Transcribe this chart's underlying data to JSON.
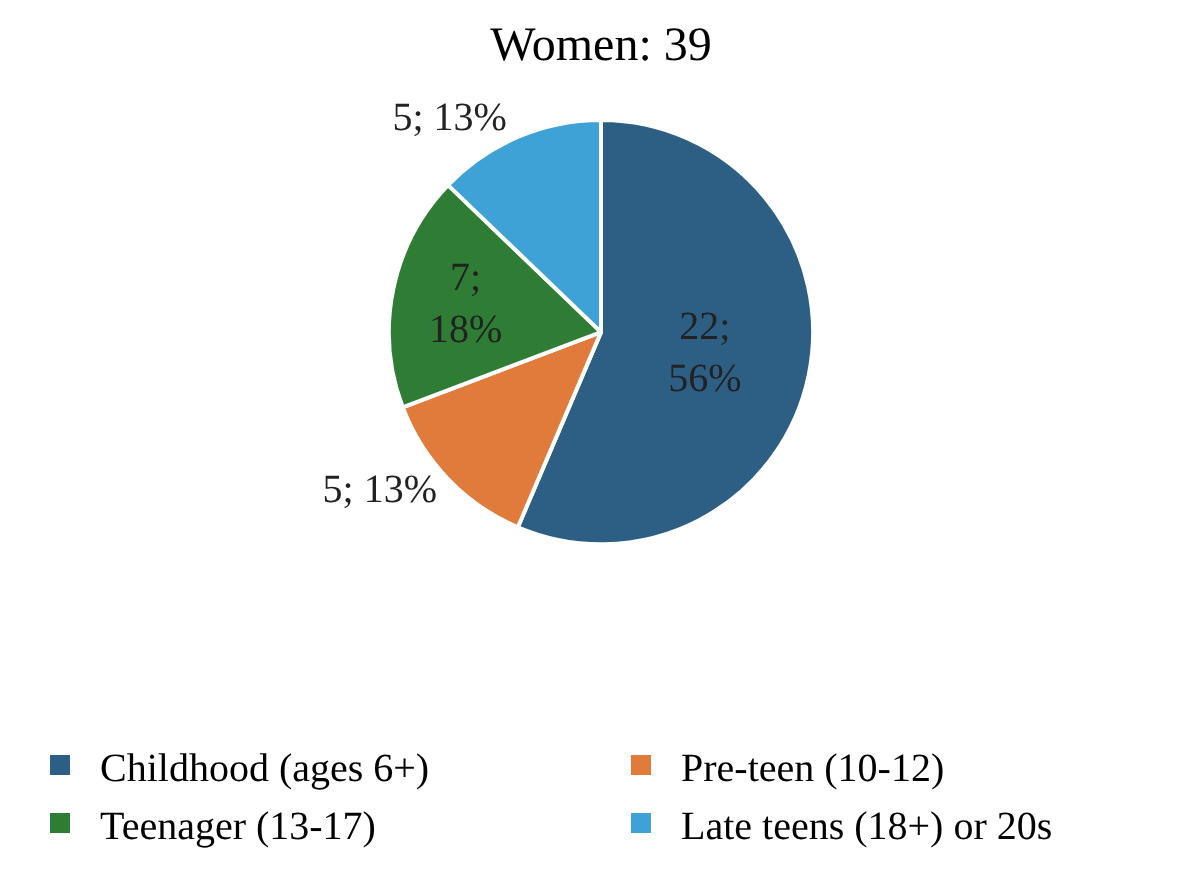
{
  "chart_data": {
    "type": "pie",
    "title": "Women: 39",
    "categories": [
      "Childhood (ages 6+)",
      "Pre-teen (10-12)",
      "Teenager (13-17)",
      "Late teens (18+) or 20s"
    ],
    "values": [
      22,
      5,
      7,
      5
    ],
    "value_labels": [
      "22; 56%",
      "5; 13%",
      "7; 18%",
      "5; 13%"
    ],
    "colors": [
      "#2d5f85",
      "#e07b3c",
      "#2f7d35",
      "#3ea2d6"
    ],
    "legend": "bottom"
  }
}
